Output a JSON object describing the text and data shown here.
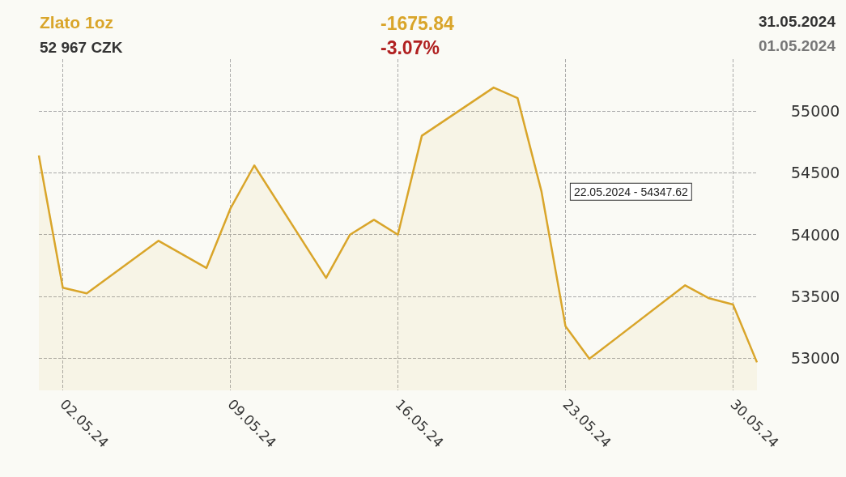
{
  "chart_data": {
    "type": "area",
    "title": "Zlato 1oz",
    "subtitle": "52 967 CZK",
    "annotations": [
      "-1675.84",
      "-3.07%",
      "31.05.2024",
      "01.05.2024",
      {
        "text": "22.05.2024 - 54347.62",
        "x": "2024-05-22",
        "y": 54347.62
      }
    ],
    "x": [
      "2024-05-01",
      "2024-05-02",
      "2024-05-03",
      "2024-05-06",
      "2024-05-08",
      "2024-05-09",
      "2024-05-10",
      "2024-05-13",
      "2024-05-14",
      "2024-05-15",
      "2024-05-16",
      "2024-05-17",
      "2024-05-20",
      "2024-05-21",
      "2024-05-22",
      "2024-05-23",
      "2024-05-24",
      "2024-05-28",
      "2024-05-29",
      "2024-05-30",
      "2024-05-31"
    ],
    "values": [
      54640,
      53570,
      53525,
      53950,
      53730,
      54210,
      54560,
      53650,
      54000,
      54120,
      54000,
      54800,
      55190,
      55105,
      54347.62,
      53260,
      52995,
      53590,
      53485,
      53435,
      52967
    ],
    "color": "#d9a52a",
    "xlim": [
      "2024-05-01",
      "2024-05-31"
    ],
    "xticks": [
      {
        "value": "2024-05-02",
        "label": "02.05.24"
      },
      {
        "value": "2024-05-09",
        "label": "09.05.24"
      },
      {
        "value": "2024-05-16",
        "label": "16.05.24"
      },
      {
        "value": "2024-05-23",
        "label": "23.05.24"
      },
      {
        "value": "2024-05-30",
        "label": "30.05.24"
      }
    ],
    "ylim": [
      52740,
      55420
    ],
    "yticks": [
      53000,
      53500,
      54000,
      54500,
      55000
    ],
    "grid": true,
    "marker": "none"
  }
}
